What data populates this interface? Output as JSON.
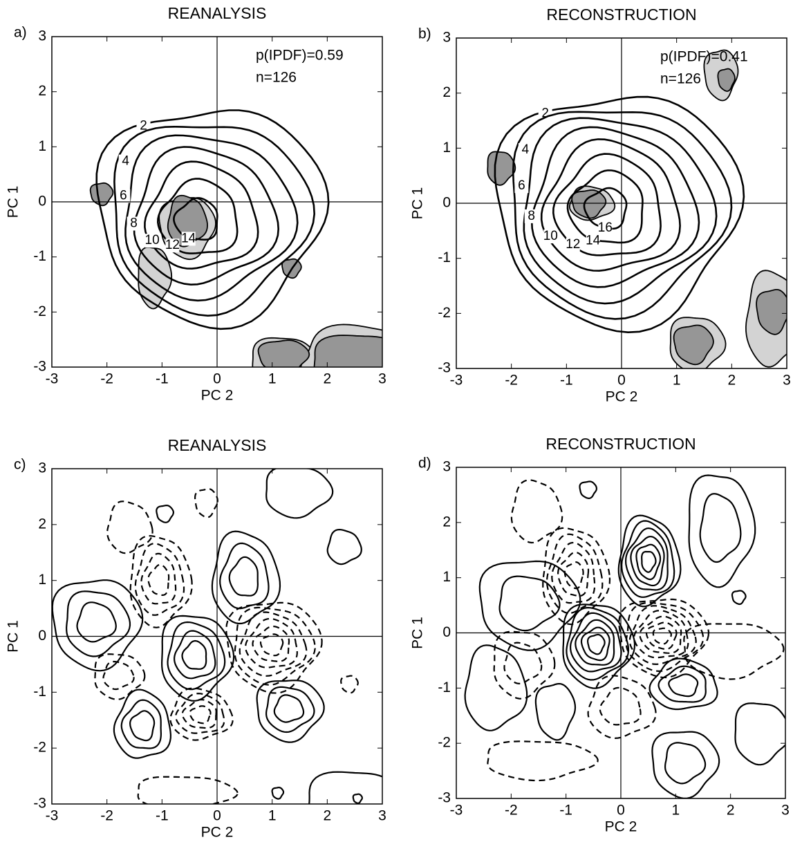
{
  "chart_data": [
    {
      "type": "contour",
      "panel": "a)",
      "title": "REANALYSIS",
      "xlabel": "PC 2",
      "ylabel": "PC 1",
      "xlim": [
        -3,
        3
      ],
      "ylim": [
        -3,
        3
      ],
      "xticks": [
        -3,
        -2,
        -1,
        0,
        1,
        2,
        3
      ],
      "yticks": [
        -3,
        -2,
        -1,
        0,
        1,
        2,
        3
      ],
      "annotations": [
        "p(IPDF)=0.59",
        "n=126"
      ],
      "contour_levels": [
        2,
        4,
        6,
        8,
        10,
        12,
        14
      ]
    },
    {
      "type": "contour",
      "panel": "b)",
      "title": "RECONSTRUCTION",
      "xlabel": "PC 2",
      "ylabel": "PC 1",
      "xlim": [
        -3,
        3
      ],
      "ylim": [
        -3,
        3
      ],
      "xticks": [
        -3,
        -2,
        -1,
        0,
        1,
        2,
        3
      ],
      "yticks": [
        -3,
        -2,
        -1,
        0,
        1,
        2,
        3
      ],
      "annotations": [
        "p(IPDF)=0.41",
        "n=126"
      ],
      "contour_levels": [
        2,
        4,
        6,
        8,
        10,
        12,
        14,
        16
      ]
    },
    {
      "type": "difference",
      "panel": "c)",
      "title": "REANALYSIS",
      "xlabel": "PC 2",
      "ylabel": "PC 1",
      "xlim": [
        -3,
        3
      ],
      "ylim": [
        -3,
        3
      ],
      "xticks": [
        -3,
        -2,
        -1,
        0,
        1,
        2,
        3
      ],
      "yticks": [
        -3,
        -2,
        -1,
        0,
        1,
        2,
        3
      ]
    },
    {
      "type": "difference",
      "panel": "d)",
      "title": "RECONSTRUCTION",
      "xlabel": "PC 2",
      "ylabel": "PC 1",
      "xlim": [
        -3,
        3
      ],
      "ylim": [
        -3,
        3
      ],
      "xticks": [
        -3,
        -2,
        -1,
        0,
        1,
        2,
        3
      ],
      "yticks": [
        -3,
        -2,
        -1,
        0,
        1,
        2,
        3
      ]
    }
  ]
}
